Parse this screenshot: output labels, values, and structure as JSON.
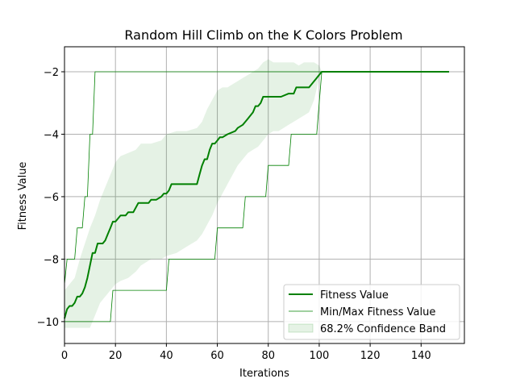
{
  "chart_data": {
    "type": "line",
    "title": "Random Hill Climb on the K Colors Problem",
    "xlabel": "Iterations",
    "ylabel": "Fitness Value",
    "xlim": [
      0,
      157
    ],
    "ylim": [
      -10.7,
      -1.2
    ],
    "xticks": [
      0,
      20,
      40,
      60,
      80,
      100,
      120,
      140
    ],
    "yticks": [
      -10,
      -8,
      -6,
      -4,
      -2
    ],
    "grid": true,
    "legend_position": "lower-right",
    "colors": {
      "line": "#008000",
      "band": "#008000"
    },
    "series": [
      {
        "name": "Fitness Value",
        "style": "mean",
        "x": [
          0,
          1,
          2,
          3,
          4,
          5,
          6,
          7,
          8,
          9,
          10,
          11,
          12,
          13,
          15,
          16,
          17,
          18,
          19,
          20,
          22,
          24,
          25,
          27,
          29,
          30,
          33,
          34,
          36,
          38,
          39,
          40,
          41,
          42,
          45,
          49,
          52,
          53,
          54,
          55,
          56,
          57,
          58,
          59,
          60,
          61,
          62,
          64,
          67,
          68,
          70,
          71,
          72,
          74,
          75,
          76,
          77,
          78,
          79,
          80,
          85,
          88,
          90,
          91,
          96,
          99,
          100,
          101,
          151
        ],
        "y": [
          -9.9,
          -9.6,
          -9.5,
          -9.5,
          -9.4,
          -9.2,
          -9.2,
          -9.1,
          -8.9,
          -8.6,
          -8.2,
          -7.8,
          -7.8,
          -7.5,
          -7.5,
          -7.4,
          -7.2,
          -7.0,
          -6.8,
          -6.8,
          -6.6,
          -6.6,
          -6.5,
          -6.5,
          -6.2,
          -6.2,
          -6.2,
          -6.1,
          -6.1,
          -6.0,
          -5.9,
          -5.9,
          -5.8,
          -5.6,
          -5.6,
          -5.6,
          -5.6,
          -5.3,
          -5.0,
          -4.8,
          -4.8,
          -4.5,
          -4.3,
          -4.3,
          -4.2,
          -4.1,
          -4.1,
          -4.0,
          -3.9,
          -3.8,
          -3.7,
          -3.6,
          -3.5,
          -3.3,
          -3.1,
          -3.1,
          -3.0,
          -2.8,
          -2.8,
          -2.8,
          -2.8,
          -2.7,
          -2.7,
          -2.5,
          -2.5,
          -2.2,
          -2.1,
          -2.0,
          -2.0
        ]
      },
      {
        "name": "Min/Max Fitness Value",
        "style": "max",
        "x": [
          0,
          1,
          3,
          4,
          5,
          7,
          8,
          9,
          10,
          11,
          12,
          13,
          151
        ],
        "y": [
          -8.8,
          -8.0,
          -8.0,
          -8.0,
          -7.0,
          -7.0,
          -6.0,
          -6.0,
          -4.0,
          -4.0,
          -2.0,
          -2.0,
          -2.0
        ]
      },
      {
        "name": "",
        "style": "min",
        "x": [
          0,
          18,
          19,
          40,
          41,
          59,
          60,
          70,
          71,
          79,
          80,
          88,
          89,
          99,
          100,
          101,
          151
        ],
        "y": [
          -10.0,
          -10.0,
          -9.0,
          -9.0,
          -8.0,
          -8.0,
          -7.0,
          -7.0,
          -6.0,
          -6.0,
          -5.0,
          -5.0,
          -4.0,
          -4.0,
          -3.0,
          -2.0,
          -2.0
        ]
      }
    ],
    "confidence_band": {
      "name": "68.2% Confidence Band",
      "x": [
        0,
        2,
        4,
        6,
        8,
        10,
        12,
        14,
        16,
        18,
        20,
        22,
        25,
        28,
        30,
        34,
        38,
        40,
        44,
        48,
        52,
        54,
        56,
        58,
        60,
        62,
        64,
        66,
        68,
        70,
        72,
        74,
        76,
        78,
        80,
        82,
        84,
        86,
        88,
        90,
        92,
        94,
        96,
        98,
        100,
        101,
        151
      ],
      "upper": [
        -9.0,
        -8.8,
        -8.6,
        -8.0,
        -7.5,
        -7.0,
        -6.6,
        -6.1,
        -5.7,
        -5.3,
        -4.9,
        -4.7,
        -4.6,
        -4.5,
        -4.3,
        -4.3,
        -4.2,
        -4.0,
        -3.9,
        -3.9,
        -3.8,
        -3.6,
        -3.2,
        -2.9,
        -2.6,
        -2.5,
        -2.5,
        -2.4,
        -2.3,
        -2.2,
        -2.1,
        -2.0,
        -1.9,
        -1.7,
        -1.6,
        -1.7,
        -1.7,
        -1.7,
        -1.7,
        -1.7,
        -1.8,
        -1.7,
        -1.7,
        -1.7,
        -1.8,
        -2.0,
        -2.0
      ],
      "lower": [
        -10.2,
        -10.2,
        -10.2,
        -10.2,
        -10.2,
        -10.2,
        -9.8,
        -9.4,
        -9.2,
        -9.0,
        -8.8,
        -8.7,
        -8.6,
        -8.4,
        -8.2,
        -8.0,
        -8.0,
        -7.9,
        -7.8,
        -7.6,
        -7.4,
        -7.2,
        -6.9,
        -6.6,
        -6.2,
        -5.9,
        -5.6,
        -5.3,
        -5.0,
        -4.8,
        -4.6,
        -4.5,
        -4.4,
        -4.2,
        -4.0,
        -3.9,
        -3.9,
        -3.8,
        -3.7,
        -3.6,
        -3.5,
        -3.4,
        -3.3,
        -2.9,
        -2.2,
        -2.0,
        -2.0
      ]
    }
  }
}
